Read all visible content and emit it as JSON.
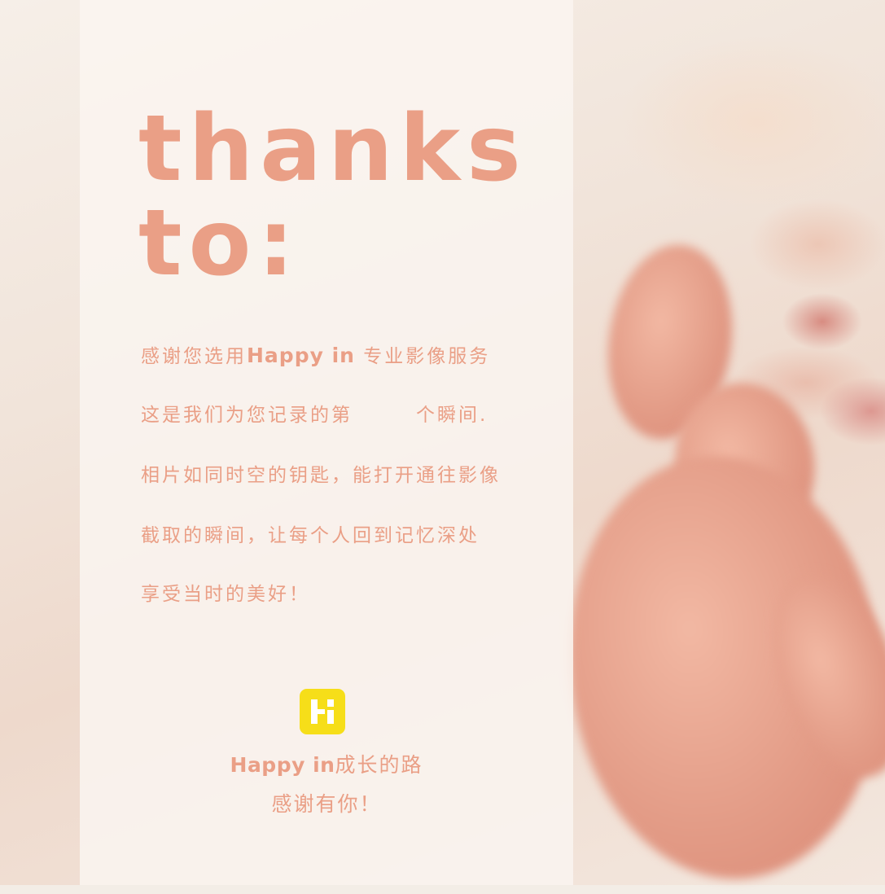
{
  "title": {
    "line1": "thanks",
    "line2": "to:"
  },
  "body": {
    "line1_pre": "感谢您选用",
    "line1_brand": "Happy in",
    "line1_post": " 专业影像服务",
    "line2_pre": "这是我们为您记录的第",
    "line2_post": "个瞬间.",
    "line3": "相片如同时空的钥匙，能打开通往影像",
    "line4": "截取的瞬间，让每个人回到记忆深处",
    "line5": "享受当时的美好！"
  },
  "footer": {
    "brand": "Happy in",
    "line1_post": "成长的路",
    "line2": "感谢有你！"
  },
  "logo": {
    "icon": "happy-in-logo-icon",
    "color": "#f6de19"
  },
  "colors": {
    "accent": "#ea9f86",
    "panel": "#faf5f0"
  }
}
